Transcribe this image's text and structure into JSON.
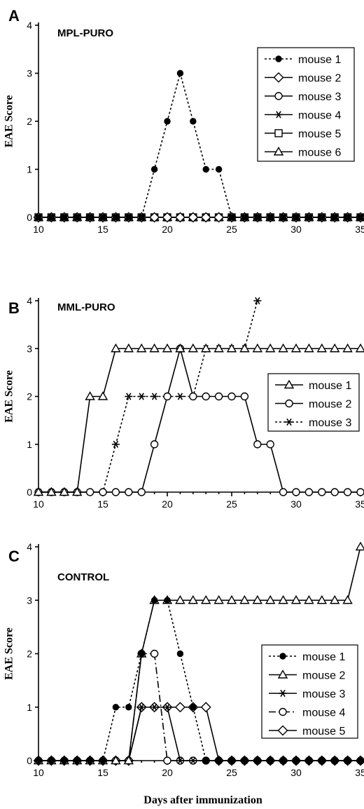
{
  "chart_data": [
    {
      "type": "line",
      "panel_label": "A",
      "title": "MPL-PURO",
      "ylabel": "EAE Score",
      "xlabel": "",
      "xlim": [
        10,
        35
      ],
      "ylim": [
        0,
        4
      ],
      "xticks": [
        10,
        15,
        20,
        25,
        30,
        35
      ],
      "yticks": [
        0,
        1,
        2,
        3,
        4
      ],
      "legend_position": "top-right",
      "series": [
        {
          "name": "mouse 1",
          "marker": "filled-circle",
          "line": "dotted",
          "x": [
            10,
            11,
            12,
            13,
            14,
            15,
            16,
            17,
            18,
            19,
            20,
            21,
            22,
            23,
            24,
            25,
            26,
            27,
            28,
            29,
            30,
            31,
            32,
            33,
            34,
            35
          ],
          "y": [
            0,
            0,
            0,
            0,
            0,
            0,
            0,
            0,
            0,
            1,
            2,
            3,
            2,
            1,
            1,
            0,
            0,
            0,
            0,
            0,
            0,
            0,
            0,
            0,
            0,
            0
          ]
        },
        {
          "name": "mouse 2",
          "marker": "open-diamond",
          "line": "solid",
          "x": [
            10,
            11,
            12,
            13,
            14,
            15,
            16,
            17,
            18,
            19,
            20,
            21,
            22,
            23,
            24,
            25,
            26,
            27,
            28,
            29,
            30,
            31,
            32,
            33,
            34,
            35
          ],
          "y": [
            0,
            0,
            0,
            0,
            0,
            0,
            0,
            0,
            0,
            0,
            0,
            0,
            0,
            0,
            0,
            0,
            0,
            0,
            0,
            0,
            0,
            0,
            0,
            0,
            0,
            0
          ]
        },
        {
          "name": "mouse 3",
          "marker": "open-circle",
          "line": "solid",
          "x": [
            10,
            11,
            12,
            13,
            14,
            15,
            16,
            17,
            18,
            19,
            20,
            21,
            22,
            23,
            24,
            25,
            26,
            27,
            28,
            29,
            30,
            31,
            32,
            33,
            34,
            35
          ],
          "y": [
            0,
            0,
            0,
            0,
            0,
            0,
            0,
            0,
            0,
            0,
            0,
            0,
            0,
            0,
            0,
            0,
            0,
            0,
            0,
            0,
            0,
            0,
            0,
            0,
            0,
            0
          ]
        },
        {
          "name": "mouse 4",
          "marker": "asterisk",
          "line": "solid",
          "x": [
            10,
            11,
            12,
            13,
            14,
            15,
            16,
            17,
            18,
            19,
            20,
            21,
            22,
            23,
            24,
            25,
            26,
            27,
            28,
            29,
            30,
            31,
            32,
            33,
            34,
            35
          ],
          "y": [
            0,
            0,
            0,
            0,
            0,
            0,
            0,
            0,
            0,
            0,
            0,
            0,
            0,
            0,
            0,
            0,
            0,
            0,
            0,
            0,
            0,
            0,
            0,
            0,
            0,
            0
          ]
        },
        {
          "name": "mouse 5",
          "marker": "open-square",
          "line": "solid",
          "x": [
            10,
            11,
            12,
            13,
            14,
            15,
            16,
            17,
            18,
            19,
            20,
            21,
            22,
            23,
            24,
            25,
            26,
            27,
            28,
            29,
            30,
            31,
            32,
            33,
            34,
            35
          ],
          "y": [
            0,
            0,
            0,
            0,
            0,
            0,
            0,
            0,
            0,
            0,
            0,
            0,
            0,
            0,
            0,
            0,
            0,
            0,
            0,
            0,
            0,
            0,
            0,
            0,
            0,
            0
          ]
        },
        {
          "name": "mouse 6",
          "marker": "open-triangle",
          "line": "solid",
          "x": [
            10,
            11,
            12,
            13,
            14,
            15,
            16,
            17,
            18,
            19,
            20,
            21,
            22,
            23,
            24,
            25,
            26,
            27,
            28,
            29,
            30,
            31,
            32,
            33,
            34,
            35
          ],
          "y": [
            0,
            0,
            0,
            0,
            0,
            0,
            0,
            0,
            0,
            0,
            0,
            0,
            0,
            0,
            0,
            0,
            0,
            0,
            0,
            0,
            0,
            0,
            0,
            0,
            0,
            0
          ]
        }
      ]
    },
    {
      "type": "line",
      "panel_label": "B",
      "title": "MML-PURO",
      "ylabel": "EAE Score",
      "xlabel": "",
      "xlim": [
        10,
        35
      ],
      "ylim": [
        0,
        4
      ],
      "xticks": [
        10,
        15,
        20,
        25,
        30,
        35
      ],
      "yticks": [
        0,
        1,
        2,
        3,
        4
      ],
      "legend_position": "center-right",
      "series": [
        {
          "name": "mouse 1",
          "marker": "open-triangle",
          "line": "solid",
          "x": [
            10,
            11,
            12,
            13,
            14,
            15,
            16,
            17,
            18,
            19,
            20,
            21,
            22,
            23,
            24,
            25,
            26,
            27,
            28,
            29,
            30,
            31,
            32,
            33,
            34,
            35
          ],
          "y": [
            0,
            0,
            0,
            0,
            2,
            2,
            3,
            3,
            3,
            3,
            3,
            3,
            3,
            3,
            3,
            3,
            3,
            3,
            3,
            3,
            3,
            3,
            3,
            3,
            3,
            3
          ]
        },
        {
          "name": "mouse 2",
          "marker": "open-circle",
          "line": "solid",
          "x": [
            10,
            11,
            12,
            13,
            14,
            15,
            16,
            17,
            18,
            19,
            20,
            21,
            22,
            23,
            24,
            25,
            26,
            27,
            28,
            29,
            30,
            31,
            32,
            33,
            34,
            35
          ],
          "y": [
            0,
            0,
            0,
            0,
            0,
            0,
            0,
            0,
            0,
            1,
            2,
            3,
            2,
            2,
            2,
            2,
            2,
            1,
            1,
            0,
            0,
            0,
            0,
            0,
            0,
            0
          ]
        },
        {
          "name": "mouse 3",
          "marker": "asterisk",
          "line": "dotted",
          "x": [
            10,
            11,
            12,
            13,
            14,
            15,
            16,
            17,
            18,
            19,
            20,
            21,
            22,
            23,
            24,
            25,
            26,
            27
          ],
          "y": [
            0,
            0,
            0,
            0,
            0,
            0,
            1,
            2,
            2,
            2,
            2,
            2,
            2,
            3,
            3,
            3,
            3,
            4
          ]
        }
      ]
    },
    {
      "type": "line",
      "panel_label": "C",
      "title": "CONTROL",
      "ylabel": "EAE Score",
      "xlabel": "Days after immunization",
      "xlim": [
        10,
        35
      ],
      "ylim": [
        0,
        4
      ],
      "xticks": [
        10,
        15,
        20,
        25,
        30,
        35
      ],
      "yticks": [
        0,
        1,
        2,
        3,
        4
      ],
      "legend_position": "lower-right",
      "series": [
        {
          "name": "mouse 1",
          "marker": "filled-circle",
          "line": "dotted",
          "x": [
            10,
            11,
            12,
            13,
            14,
            15,
            16,
            17,
            18,
            19,
            20,
            21,
            22,
            23,
            24,
            25,
            26,
            27,
            28,
            29,
            30,
            31,
            32,
            33,
            34,
            35
          ],
          "y": [
            0,
            0,
            0,
            0,
            0,
            0,
            1,
            1,
            2,
            3,
            3,
            2,
            1,
            0,
            0,
            0,
            0,
            0,
            0,
            0,
            0,
            0,
            0,
            0,
            0,
            0
          ]
        },
        {
          "name": "mouse 2",
          "marker": "open-triangle",
          "line": "solid",
          "x": [
            10,
            11,
            12,
            13,
            14,
            15,
            16,
            17,
            18,
            19,
            20,
            21,
            22,
            23,
            24,
            25,
            26,
            27,
            28,
            29,
            30,
            31,
            32,
            33,
            34,
            35
          ],
          "y": [
            0,
            0,
            0,
            0,
            0,
            0,
            0,
            0,
            2,
            3,
            3,
            3,
            3,
            3,
            3,
            3,
            3,
            3,
            3,
            3,
            3,
            3,
            3,
            3,
            3,
            4
          ]
        },
        {
          "name": "mouse 3",
          "marker": "asterisk",
          "line": "solid",
          "x": [
            10,
            11,
            12,
            13,
            14,
            15,
            16,
            17,
            18,
            19,
            20,
            21,
            22,
            23,
            24,
            25,
            26,
            27,
            28,
            29,
            30,
            31,
            32,
            33,
            34,
            35
          ],
          "y": [
            0,
            0,
            0,
            0,
            0,
            0,
            0,
            0,
            1,
            1,
            1,
            0,
            0,
            0,
            0,
            0,
            0,
            0,
            0,
            0,
            0,
            0,
            0,
            0,
            0,
            0
          ]
        },
        {
          "name": "mouse 4",
          "marker": "open-circle",
          "line": "dashdot",
          "x": [
            10,
            11,
            12,
            13,
            14,
            15,
            16,
            17,
            18,
            19,
            20,
            21,
            22,
            23,
            24,
            25,
            26,
            27,
            28,
            29,
            30,
            31,
            32,
            33,
            34,
            35
          ],
          "y": [
            0,
            0,
            0,
            0,
            0,
            0,
            0,
            0,
            2,
            2,
            0,
            0,
            0,
            0,
            0,
            0,
            0,
            0,
            0,
            0,
            0,
            0,
            0,
            0,
            0,
            0
          ]
        },
        {
          "name": "mouse 5",
          "marker": "open-diamond",
          "line": "solid",
          "x": [
            10,
            11,
            12,
            13,
            14,
            15,
            16,
            17,
            18,
            19,
            20,
            21,
            22,
            23,
            24,
            25,
            26,
            27,
            28,
            29,
            30,
            31,
            32,
            33,
            34,
            35
          ],
          "y": [
            0,
            0,
            0,
            0,
            0,
            0,
            0,
            0,
            1,
            1,
            1,
            1,
            1,
            1,
            0,
            0,
            0,
            0,
            0,
            0,
            0,
            0,
            0,
            0,
            0,
            0
          ]
        }
      ]
    }
  ]
}
